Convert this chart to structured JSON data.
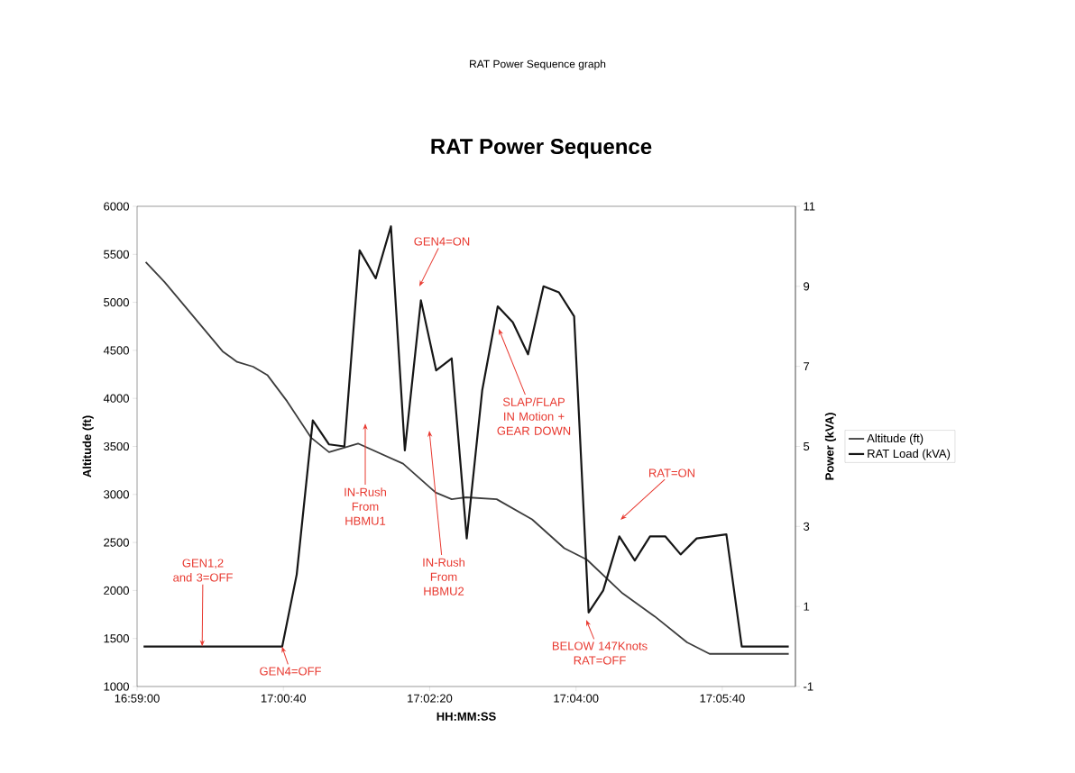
{
  "chart_data": {
    "type": "line",
    "title": "RAT Power Sequence",
    "subtitle": "RAT Power Sequence graph",
    "xlabel": "HH:MM:SS",
    "ylabel": "Altitude (ft)",
    "y2label": "Power (kVA)",
    "xlim": [
      16.98333,
      17.10833
    ],
    "xticks": [
      {
        "value": 16.98333,
        "label": "16:59:00"
      },
      {
        "value": 17.01111,
        "label": "17:00:40"
      },
      {
        "value": 17.03889,
        "label": "17:02:20"
      },
      {
        "value": 17.06667,
        "label": "17:04:00"
      },
      {
        "value": 17.09444,
        "label": "17:05:40"
      }
    ],
    "ylim": [
      1000,
      6000
    ],
    "yticks": [
      1000,
      1500,
      2000,
      2500,
      3000,
      3500,
      4000,
      4500,
      5000,
      5500,
      6000
    ],
    "y2lim": [
      -1,
      11
    ],
    "y2ticks": [
      -1,
      1,
      3,
      5,
      7,
      9,
      11
    ],
    "legend": "right",
    "grid": false,
    "marker": "none",
    "line_style": "solid",
    "series": [
      {
        "name": "Altitude (ft)",
        "color": "#3c3c3c",
        "x": [
          16.98497,
          16.98856,
          16.99956,
          17.00231,
          17.00536,
          17.00811,
          17.01181,
          17.01639,
          17.01978,
          17.02528,
          17.03383,
          17.04,
          17.04306,
          17.04581,
          17.05161,
          17.05833,
          17.06444,
          17.06875,
          17.0755,
          17.08161,
          17.08775,
          17.09203,
          17.10706
        ],
        "values": [
          5420,
          5210,
          4490,
          4380,
          4330,
          4240,
          3970,
          3590,
          3440,
          3530,
          3320,
          3020,
          2950,
          2970,
          2950,
          2740,
          2440,
          2320,
          1970,
          1730,
          1460,
          1340,
          1340
        ]
      },
      {
        "name": "RAT Load (kVA)",
        "color": "#161616",
        "axis": "y2",
        "x": [
          16.98456,
          17.01089,
          17.01364,
          17.01669,
          17.01978,
          17.02269,
          17.02558,
          17.02864,
          17.03153,
          17.03417,
          17.03722,
          17.04011,
          17.04306,
          17.04592,
          17.04886,
          17.05181,
          17.05467,
          17.05756,
          17.0605,
          17.06342,
          17.06631,
          17.06906,
          17.07183,
          17.07489,
          17.07783,
          17.08072,
          17.08364,
          17.08653,
          17.08958,
          17.09522,
          17.09814,
          17.10706
        ],
        "values": [
          0,
          0,
          1.8,
          5.65,
          5.05,
          5.0,
          9.9,
          9.2,
          10.5,
          4.9,
          8.65,
          6.9,
          7.2,
          2.7,
          6.4,
          8.5,
          8.1,
          7.3,
          9.0,
          8.85,
          8.25,
          0.85,
          1.4,
          2.75,
          2.15,
          2.75,
          2.75,
          2.3,
          2.7,
          2.8,
          0,
          0
        ]
      }
    ],
    "annotations": [
      {
        "text": "GEN1,2 and 3=OFF",
        "x": 16.99569,
        "y": 1417
      },
      {
        "text": "GEN4=OFF",
        "x": 17.01083,
        "y": 1417
      },
      "IN-Rush From HBMU1",
      "GEN4=ON",
      "IN-Rush From HBMU2",
      "SLAP/FLAP IN Motion + GEAR DOWN",
      "RAT=ON",
      "BELOW 147Knots RAT=OFF"
    ]
  }
}
